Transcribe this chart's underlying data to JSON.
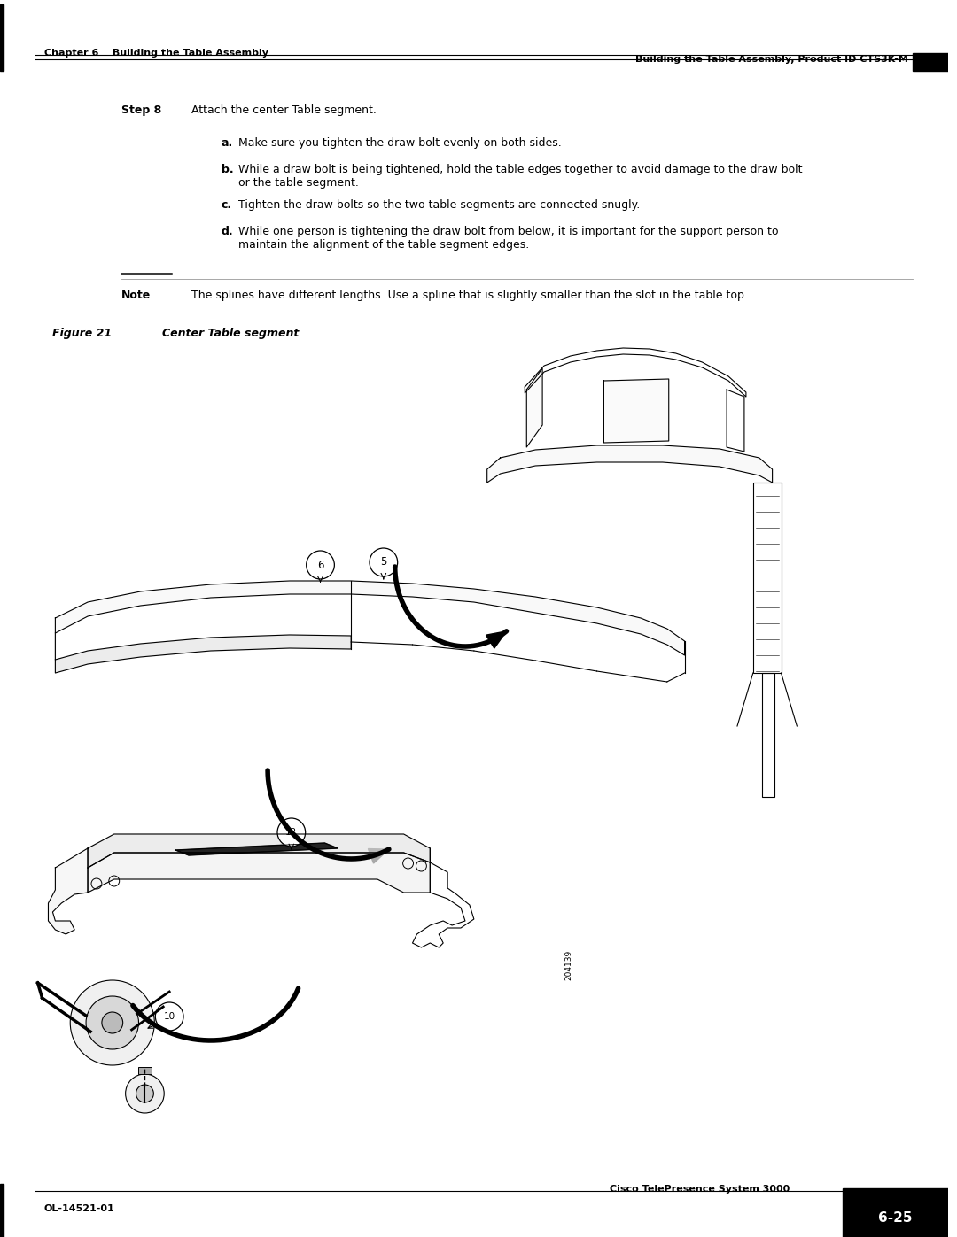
{
  "page_width": 10.8,
  "page_height": 13.97,
  "bg_color": "#ffffff",
  "header_left": "Chapter 6    Building the Table Assembly",
  "header_right": "Building the Table Assembly, Product ID CTS3K-M",
  "footer_left": "OL-14521-01",
  "footer_center": "Cisco TelePresence System 3000",
  "footer_right": "6-25",
  "step_label": "Step 8",
  "step_text": "Attach the center Table segment.",
  "items": [
    {
      "label": "a.",
      "text": "Make sure you tighten the draw bolt evenly on both sides."
    },
    {
      "label": "b.",
      "text": "While a draw bolt is being tightened, hold the table edges together to avoid damage to the draw bolt\nor the table segment."
    },
    {
      "label": "c.",
      "text": "Tighten the draw bolts so the two table segments are connected snugly."
    },
    {
      "label": "d.",
      "text": "While one person is tightening the draw bolt from below, it is important for the support person to\nmaintain the alignment of the table segment edges."
    }
  ],
  "note_label": "Note",
  "note_text": "The splines have different lengths. Use a spline that is slightly smaller than the slot in the table top.",
  "figure_label": "Figure 21",
  "figure_title": "Center Table segment",
  "figure_image_id": "204139"
}
